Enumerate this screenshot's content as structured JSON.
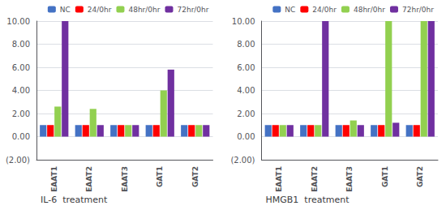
{
  "chart_data": [
    {
      "type": "bar",
      "title": "IL-6  treatment",
      "categories": [
        "EAAT1",
        "EAAT2",
        "EAAT3",
        "GAT1",
        "GAT2"
      ],
      "series": [
        {
          "name": "NC",
          "color": "#4472c4",
          "values": [
            1.0,
            1.0,
            1.0,
            1.0,
            1.0
          ]
        },
        {
          "name": "24/0hr",
          "color": "#ff0000",
          "values": [
            1.0,
            1.0,
            1.0,
            1.0,
            1.0
          ]
        },
        {
          "name": "48hr/0hr",
          "color": "#92d050",
          "values": [
            2.6,
            2.4,
            1.0,
            4.0,
            1.0
          ]
        },
        {
          "name": "72hr/0hr",
          "color": "#7030a0",
          "values": [
            10.0,
            1.0,
            1.0,
            5.8,
            1.0
          ]
        }
      ],
      "ylim": [
        -2.0,
        10.0
      ],
      "yticks": [
        {
          "value": -2.0,
          "label": "(2.00)"
        },
        {
          "value": 0.0,
          "label": "0.00"
        },
        {
          "value": 2.0,
          "label": "2.00"
        },
        {
          "value": 4.0,
          "label": "4.00"
        },
        {
          "value": 6.0,
          "label": "6.00"
        },
        {
          "value": 8.0,
          "label": "8.00"
        },
        {
          "value": 10.0,
          "label": "10.00"
        }
      ],
      "grid": true,
      "legend": "upper right"
    },
    {
      "type": "bar",
      "title": "HMGB1  treatment",
      "categories": [
        "EAAT1",
        "EAAT2",
        "EAAT3",
        "GAT1",
        "GAT2"
      ],
      "series": [
        {
          "name": "NC",
          "color": "#4472c4",
          "values": [
            1.0,
            1.0,
            1.0,
            1.0,
            1.0
          ]
        },
        {
          "name": "24/0hr",
          "color": "#ff0000",
          "values": [
            1.0,
            1.0,
            1.0,
            1.0,
            1.0
          ]
        },
        {
          "name": "48hr/0hr",
          "color": "#92d050",
          "values": [
            1.0,
            1.0,
            1.4,
            10.0,
            10.0
          ]
        },
        {
          "name": "72hr/0hr",
          "color": "#7030a0",
          "values": [
            1.0,
            10.0,
            1.0,
            1.2,
            10.0
          ]
        }
      ],
      "ylim": [
        -2.0,
        10.0
      ],
      "yticks": [
        {
          "value": -2.0,
          "label": "(2.00)"
        },
        {
          "value": 0.0,
          "label": "0.00"
        },
        {
          "value": 2.0,
          "label": "2.00"
        },
        {
          "value": 4.0,
          "label": "4.00"
        },
        {
          "value": 6.0,
          "label": "6.00"
        },
        {
          "value": 8.0,
          "label": "8.00"
        },
        {
          "value": 10.0,
          "label": "10.00"
        }
      ],
      "grid": true,
      "legend": "upper right"
    }
  ]
}
